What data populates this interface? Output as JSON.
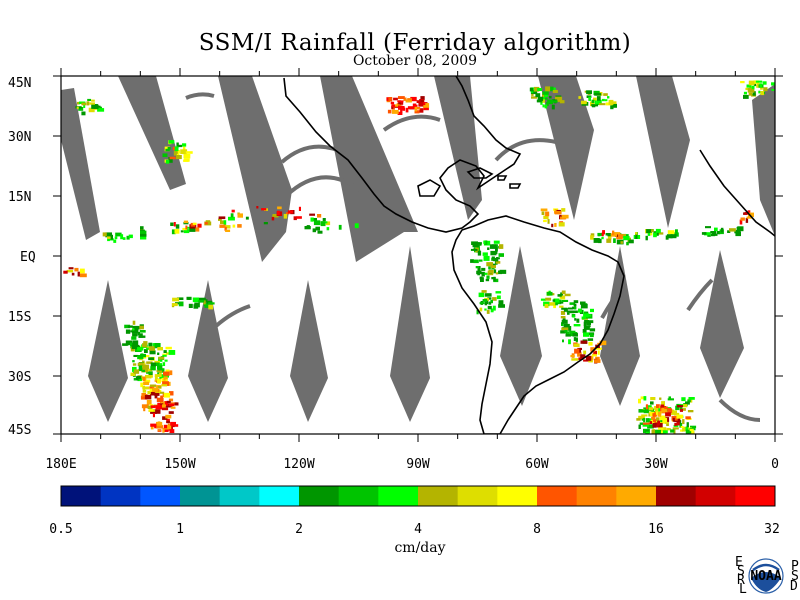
{
  "title": "SSM/I Rainfall (Ferriday algorithm)",
  "date": "October 08, 2009",
  "map": {
    "lat_labels": [
      "45N",
      "30N",
      "15N",
      "EQ",
      "15S",
      "30S",
      "45S"
    ],
    "lon_labels": [
      "180E",
      "150W",
      "120W",
      "90W",
      "60W",
      "30W",
      "0"
    ],
    "gap_color": "#6e6e6e",
    "coast_color": "#000000"
  },
  "colorbar": {
    "units": "cm/day",
    "tick_labels": [
      "0.5",
      "1",
      "2",
      "4",
      "8",
      "16",
      "32"
    ],
    "colors": [
      "#00127a",
      "#0034c2",
      "#0056ff",
      "#009494",
      "#00c8c8",
      "#00ffff",
      "#009600",
      "#00c400",
      "#00ff00",
      "#b4b400",
      "#dede00",
      "#ffff00",
      "#ff5500",
      "#ff8200",
      "#ffaa00",
      "#a00000",
      "#d20000",
      "#ff0000"
    ]
  },
  "logo": {
    "left_letters": [
      "E",
      "S",
      "R",
      "L"
    ],
    "right_letters": [
      "P",
      "S",
      "D"
    ],
    "center_text": "NOAA"
  }
}
